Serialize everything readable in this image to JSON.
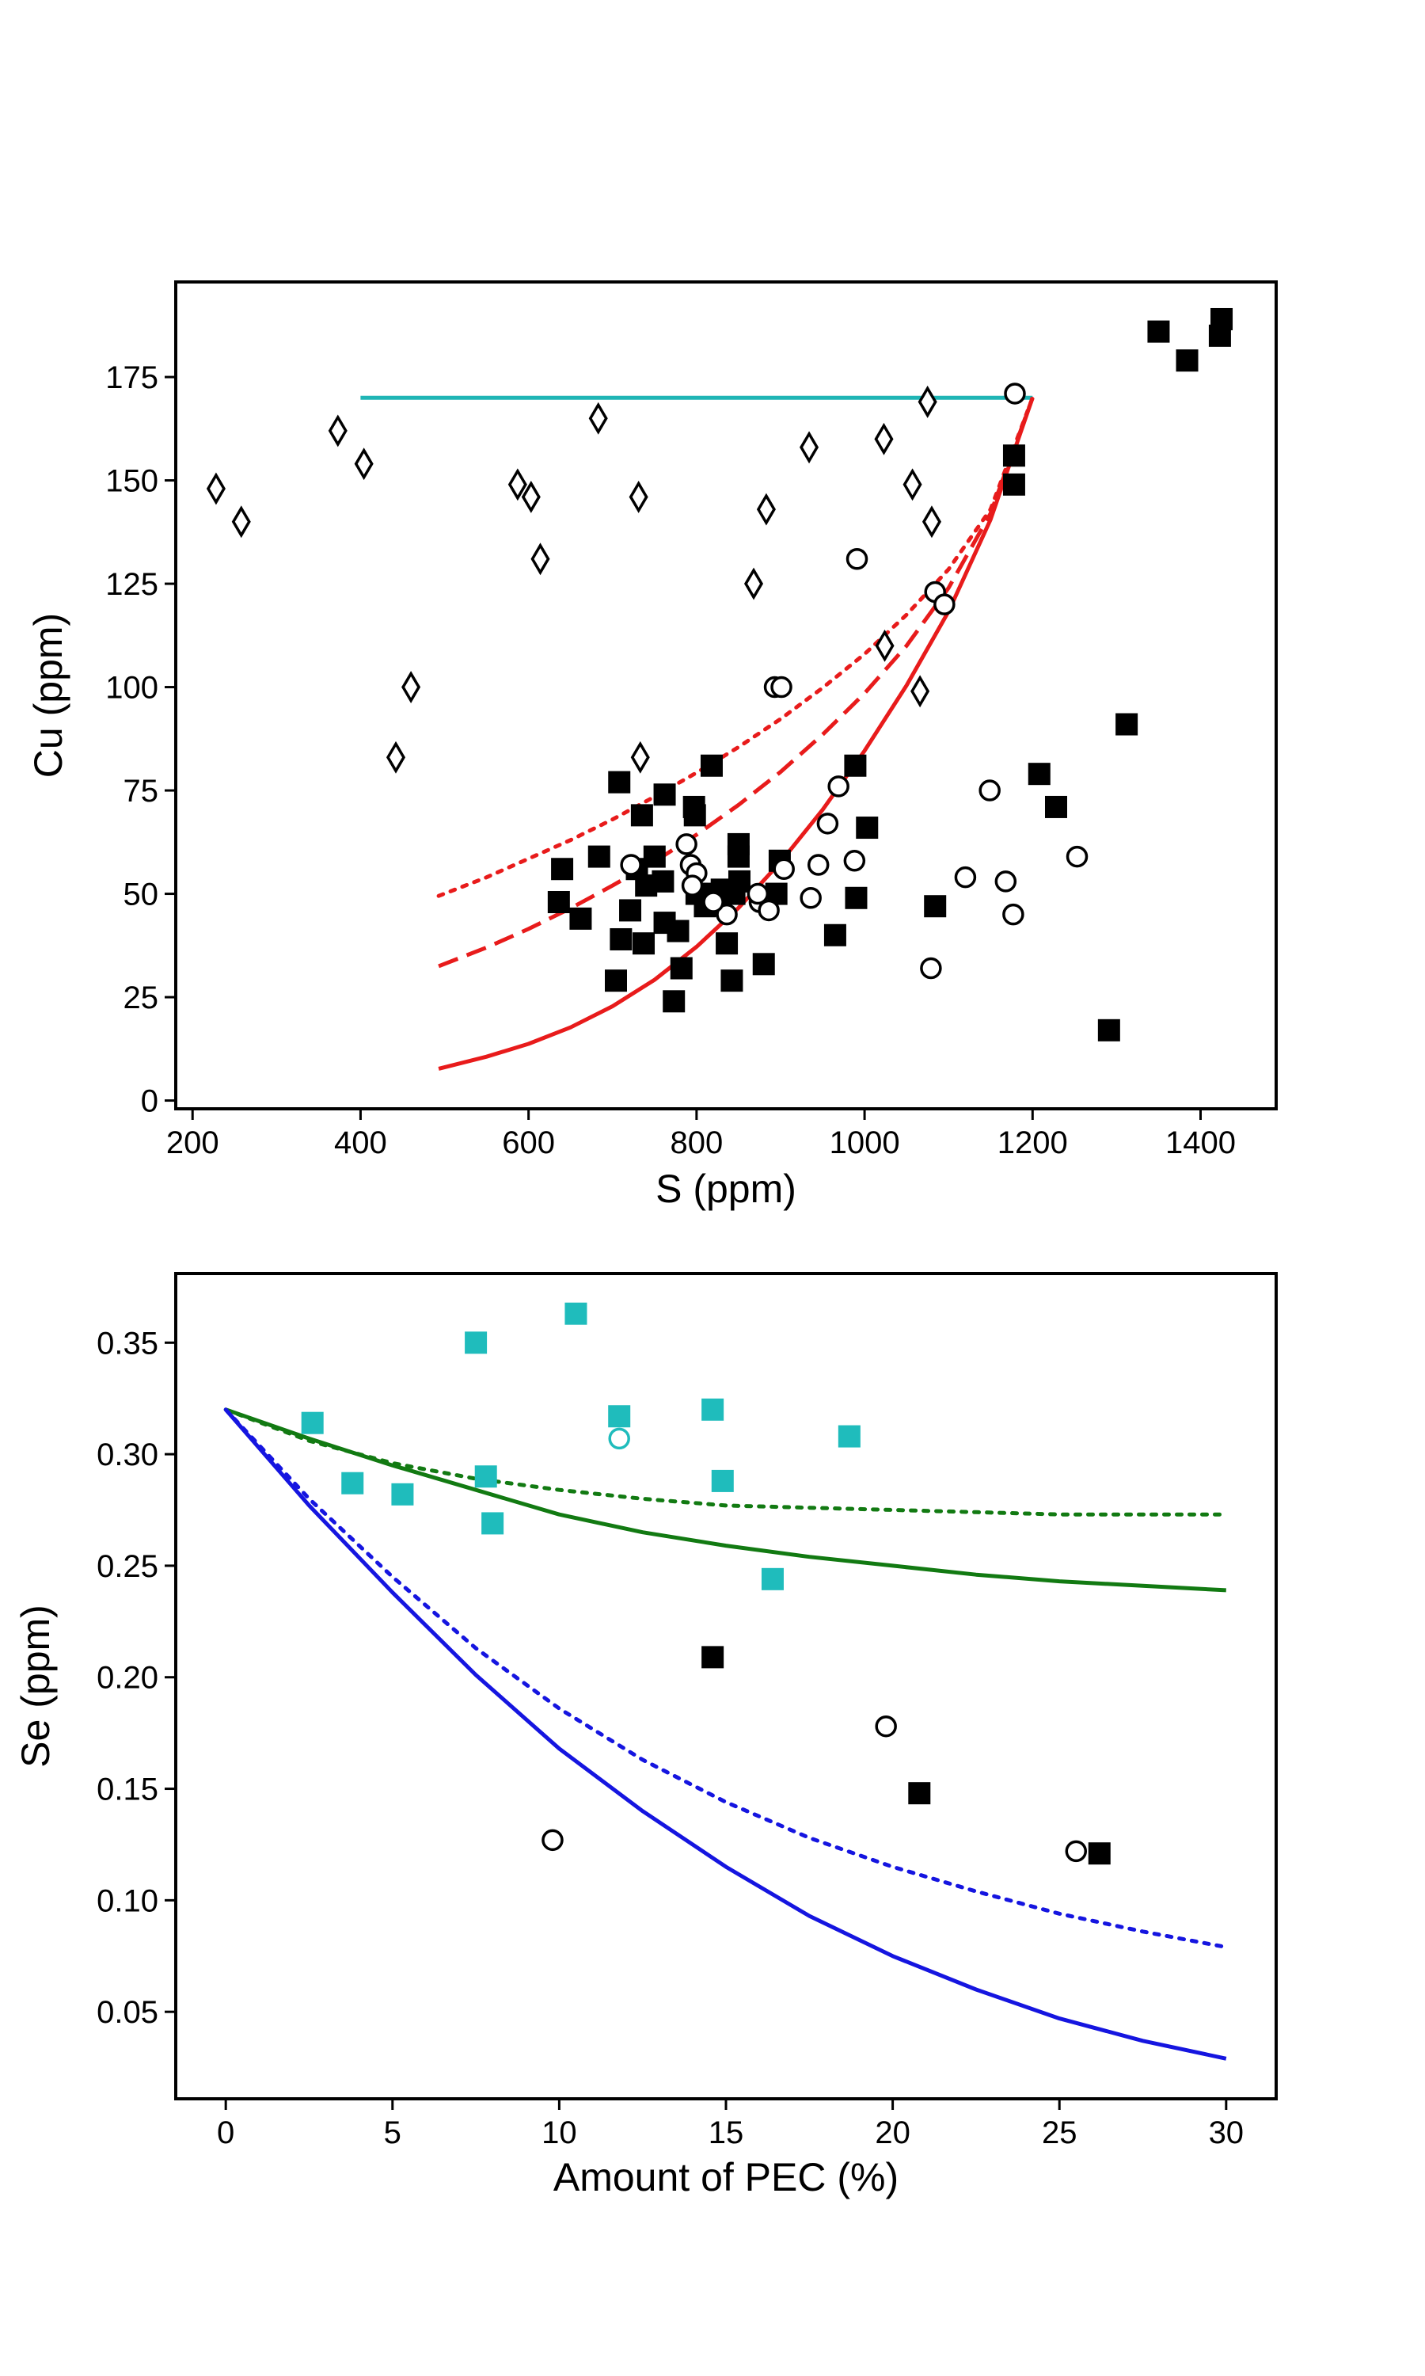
{
  "chart_data": [
    {
      "type": "scatter",
      "xlabel": "S (ppm)",
      "ylabel": "Cu (ppm)",
      "xlim": [
        180,
        1490
      ],
      "ylim": [
        -2,
        198
      ],
      "xticks": [
        200,
        400,
        600,
        800,
        1000,
        1200,
        1400
      ],
      "yticks": [
        0,
        25,
        50,
        75,
        100,
        125,
        150,
        175
      ],
      "series": [
        {
          "marker": "filled-square",
          "color": "#000000",
          "points": [
            [
              1425,
              189
            ],
            [
              1423,
              185
            ],
            [
              1350,
              186
            ],
            [
              1384,
              179
            ],
            [
              1178,
              156
            ],
            [
              1178,
              149
            ],
            [
              1312,
              91
            ],
            [
              1208,
              79
            ],
            [
              1228,
              71
            ],
            [
              1291,
              17
            ],
            [
              1084,
              47
            ],
            [
              818,
              81
            ],
            [
              989,
              81
            ],
            [
              708,
              77
            ],
            [
              762,
              74
            ],
            [
              797,
              71
            ],
            [
              798,
              69
            ],
            [
              735,
              69
            ],
            [
              1003,
              66
            ],
            [
              850,
              62
            ],
            [
              850,
              59
            ],
            [
              899,
              58
            ],
            [
              684,
              59
            ],
            [
              750,
              59
            ],
            [
              640,
              56
            ],
            [
              729,
              56
            ],
            [
              760,
              53
            ],
            [
              740,
              52
            ],
            [
              851,
              53
            ],
            [
              820,
              50
            ],
            [
              895,
              50
            ],
            [
              830,
              51
            ],
            [
              800,
              50
            ],
            [
              810,
              47
            ],
            [
              845,
              50
            ],
            [
              880,
              49
            ],
            [
              990,
              49
            ],
            [
              636,
              48
            ],
            [
              721,
              46
            ],
            [
              662,
              44
            ],
            [
              762,
              43
            ],
            [
              778,
              41
            ],
            [
              710,
              39
            ],
            [
              737,
              38
            ],
            [
              836,
              38
            ],
            [
              965,
              40
            ],
            [
              704,
              29
            ],
            [
              842,
              29
            ],
            [
              782,
              32
            ],
            [
              880,
              33
            ],
            [
              773,
              24
            ]
          ]
        },
        {
          "marker": "open-circle",
          "color": "#000000",
          "points": [
            [
              1179,
              171
            ],
            [
              991,
              131
            ],
            [
              1084,
              123
            ],
            [
              1095,
              120
            ],
            [
              893,
              100
            ],
            [
              901,
              100
            ],
            [
              1149,
              75
            ],
            [
              969,
              76
            ],
            [
              1253,
              59
            ],
            [
              1120,
              54
            ],
            [
              1168,
              53
            ],
            [
              1177,
              45
            ],
            [
              1079,
              32
            ],
            [
              956,
              67
            ],
            [
              945,
              57
            ],
            [
              988,
              58
            ],
            [
              936,
              49
            ],
            [
              788,
              62
            ],
            [
              722,
              57
            ],
            [
              793,
              57
            ],
            [
              800,
              55
            ],
            [
              795,
              52
            ],
            [
              904,
              56
            ],
            [
              875,
              48
            ],
            [
              886,
              46
            ],
            [
              873,
              50
            ],
            [
              836,
              45
            ],
            [
              820,
              48
            ]
          ]
        },
        {
          "marker": "open-diamond",
          "color": "#000000",
          "points": [
            [
              228,
              148
            ],
            [
              258,
              140
            ],
            [
              373,
              162
            ],
            [
              404,
              154
            ],
            [
              442,
              83
            ],
            [
              460,
              100
            ],
            [
              587,
              149
            ],
            [
              603,
              146
            ],
            [
              614,
              131
            ],
            [
              683,
              165
            ],
            [
              731,
              146
            ],
            [
              733,
              83
            ],
            [
              868,
              125
            ],
            [
              883,
              143
            ],
            [
              934,
              158
            ],
            [
              1023,
              160
            ],
            [
              1057,
              149
            ],
            [
              1066,
              99
            ],
            [
              1075,
              169
            ],
            [
              1080,
              140
            ],
            [
              1024,
              110
            ]
          ]
        }
      ],
      "lines": [
        {
          "style": "solid",
          "color": "#1fb5b5",
          "x": [
            400,
            1200
          ],
          "y": [
            170,
            170
          ]
        },
        {
          "style": "solid",
          "color": "#e81b1b",
          "x": [
            493,
            550,
            600,
            650,
            700,
            750,
            800,
            850,
            900,
            950,
            1000,
            1050,
            1100,
            1150,
            1200
          ],
          "y": [
            7.7,
            10.6,
            13.7,
            17.7,
            22.8,
            29.2,
            37.2,
            46.6,
            57.7,
            70.3,
            84.6,
            100.4,
            118.3,
            140.5,
            170.0
          ]
        },
        {
          "style": "dashed",
          "color": "#e81b1b",
          "x": [
            493,
            550,
            600,
            650,
            700,
            750,
            800,
            850,
            900,
            950,
            1000,
            1050,
            1100,
            1150,
            1200
          ],
          "y": [
            32.5,
            37.0,
            41.5,
            46.5,
            52.0,
            57.8,
            64.3,
            71.5,
            79.5,
            88.5,
            98.5,
            110.0,
            124.0,
            142.0,
            170.0
          ]
        },
        {
          "style": "dotted",
          "color": "#e81b1b",
          "x": [
            493,
            550,
            600,
            650,
            700,
            750,
            800,
            850,
            900,
            950,
            1000,
            1050,
            1100,
            1150,
            1200
          ],
          "y": [
            49.5,
            54.0,
            58.5,
            63.0,
            68.0,
            73.5,
            79.3,
            85.5,
            92.3,
            99.8,
            108.0,
            117.5,
            128.5,
            143.0,
            170.0
          ]
        }
      ]
    },
    {
      "type": "scatter",
      "xlabel": "Amount of PEC (%)",
      "ylabel": "Se (ppm)",
      "xlim": [
        -1.5,
        31.5
      ],
      "ylim": [
        0.011,
        0.381
      ],
      "xticks": [
        0,
        5,
        10,
        15,
        20,
        25,
        30
      ],
      "yticks": [
        0.05,
        0.1,
        0.15,
        0.2,
        0.25,
        0.3,
        0.35
      ],
      "ytick_labels": [
        "0.05",
        "0.10",
        "0.15",
        "0.20",
        "0.25",
        "0.30",
        "0.35"
      ],
      "series": [
        {
          "marker": "filled-square",
          "color": "#1fbcbc",
          "points": [
            [
              2.6,
              0.314
            ],
            [
              3.8,
              0.287
            ],
            [
              5.3,
              0.282
            ],
            [
              7.5,
              0.35
            ],
            [
              7.8,
              0.29
            ],
            [
              8.0,
              0.269
            ],
            [
              10.5,
              0.363
            ],
            [
              11.8,
              0.317
            ],
            [
              14.6,
              0.32
            ],
            [
              14.9,
              0.288
            ],
            [
              16.4,
              0.244
            ],
            [
              18.7,
              0.308
            ]
          ]
        },
        {
          "marker": "open-circle",
          "color": "#1fbcbc",
          "points": [
            [
              11.8,
              0.307
            ]
          ]
        },
        {
          "marker": "filled-square",
          "color": "#000000",
          "points": [
            [
              14.6,
              0.209
            ],
            [
              20.8,
              0.148
            ],
            [
              26.2,
              0.121
            ]
          ]
        },
        {
          "marker": "open-circle",
          "color": "#000000",
          "points": [
            [
              9.8,
              0.127
            ],
            [
              19.8,
              0.178
            ],
            [
              25.5,
              0.122
            ]
          ]
        }
      ],
      "lines": [
        {
          "style": "solid",
          "color": "#127a12",
          "x": [
            0,
            2.5,
            5,
            7.5,
            10,
            12.5,
            15,
            17.5,
            20,
            22.5,
            25,
            27.5,
            30
          ],
          "y": [
            0.32,
            0.307,
            0.295,
            0.284,
            0.273,
            0.265,
            0.259,
            0.254,
            0.25,
            0.246,
            0.243,
            0.241,
            0.239
          ]
        },
        {
          "style": "dotted",
          "color": "#127a12",
          "x": [
            0,
            2.5,
            5,
            7.5,
            10,
            12.5,
            15,
            17.5,
            20,
            22.5,
            25,
            27.5,
            30
          ],
          "y": [
            0.32,
            0.306,
            0.296,
            0.289,
            0.284,
            0.28,
            0.277,
            0.276,
            0.275,
            0.274,
            0.273,
            0.273,
            0.273
          ]
        },
        {
          "style": "solid",
          "color": "#1515e0",
          "x": [
            0,
            2.5,
            5,
            7.5,
            10,
            12.5,
            15,
            17.5,
            20,
            22.5,
            25,
            27.5,
            30
          ],
          "y": [
            0.32,
            0.277,
            0.238,
            0.201,
            0.168,
            0.14,
            0.115,
            0.093,
            0.075,
            0.06,
            0.047,
            0.037,
            0.029
          ]
        },
        {
          "style": "dotted",
          "color": "#1515e0",
          "x": [
            0,
            2.5,
            5,
            7.5,
            10,
            12.5,
            15,
            17.5,
            20,
            22.5,
            25,
            27.5,
            30
          ],
          "y": [
            0.32,
            0.28,
            0.245,
            0.213,
            0.186,
            0.163,
            0.144,
            0.128,
            0.115,
            0.104,
            0.094,
            0.086,
            0.079
          ]
        }
      ]
    }
  ]
}
